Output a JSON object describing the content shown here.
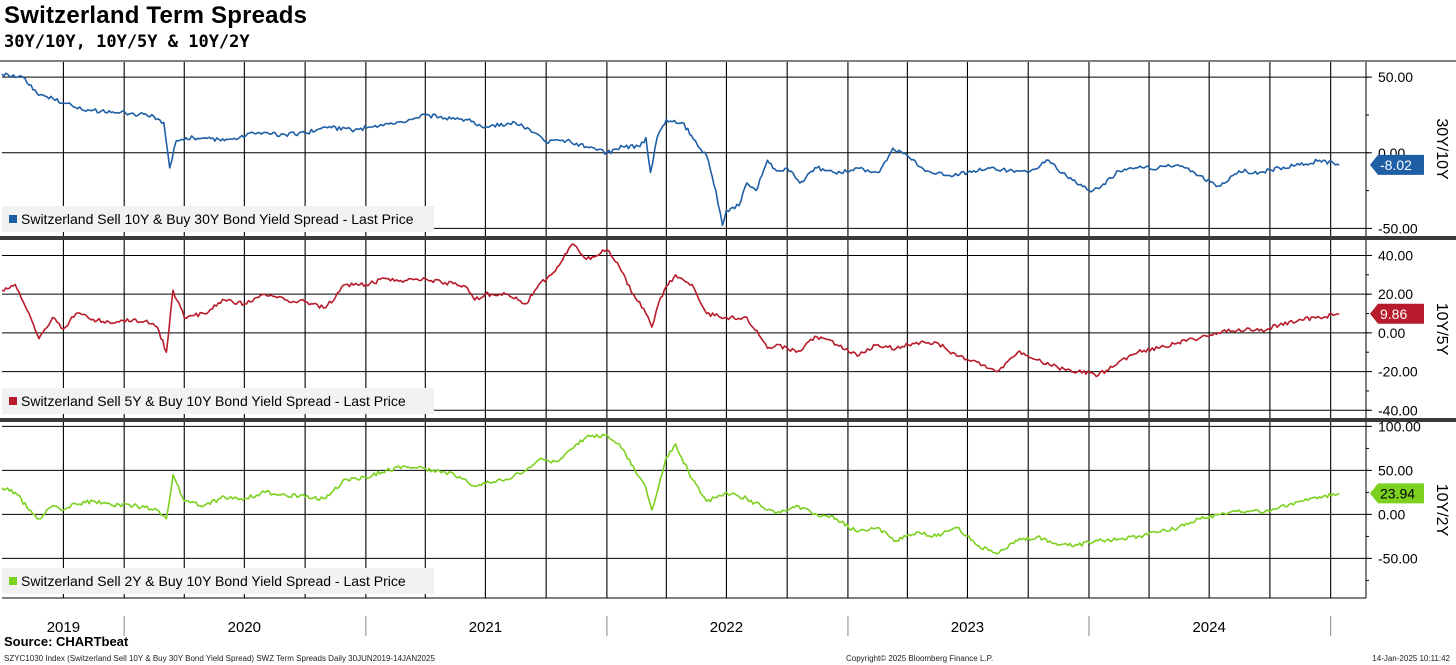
{
  "header": {
    "title": "Switzerland Term Spreads",
    "subtitle": "30Y/10Y, 10Y/5Y & 10Y/2Y"
  },
  "footer": {
    "source": "Source: CHARTbeat",
    "left": "SZYC1030 Index (Switzerland Sell 10Y & Buy 30Y Bond Yield Spread) SWZ Term Spreads  Daily 30JUN2019-14JAN2025",
    "middle": "Copyright© 2025 Bloomberg Finance L.P.",
    "right": "14-Jan-2025 10:11:42"
  },
  "chart_data": [
    {
      "type": "line",
      "axis_label": "30Y/10Y",
      "legend": "Switzerland Sell 10Y & Buy 30Y Bond Yield Spread - Last Price",
      "color": "#1f5fa6",
      "last_value": "-8.02",
      "ylim": [
        -55,
        60
      ],
      "y_ticks": [
        "50.00",
        "0.00",
        "-50.00"
      ],
      "y_tick_values": [
        50,
        0,
        -50
      ],
      "x_start": "2019-06-30",
      "x_end": "2025-01-14",
      "points": [
        [
          "2019-06-30",
          52
        ],
        [
          "2019-08-01",
          50
        ],
        [
          "2019-08-25",
          38
        ],
        [
          "2019-09-15",
          36
        ],
        [
          "2019-10-01",
          33
        ],
        [
          "2019-11-01",
          28
        ],
        [
          "2019-12-15",
          27
        ],
        [
          "2020-01-15",
          26
        ],
        [
          "2020-02-15",
          24
        ],
        [
          "2020-03-01",
          20
        ],
        [
          "2020-03-10",
          -10
        ],
        [
          "2020-03-20",
          8
        ],
        [
          "2020-04-15",
          10
        ],
        [
          "2020-06-01",
          8
        ],
        [
          "2020-07-15",
          13
        ],
        [
          "2020-09-01",
          12
        ],
        [
          "2020-10-01",
          13
        ],
        [
          "2020-11-01",
          17
        ],
        [
          "2020-12-15",
          15
        ],
        [
          "2021-01-15",
          18
        ],
        [
          "2021-03-01",
          20
        ],
        [
          "2021-04-01",
          25
        ],
        [
          "2021-05-01",
          23
        ],
        [
          "2021-06-01",
          22
        ],
        [
          "2021-07-01",
          17
        ],
        [
          "2021-08-15",
          20
        ],
        [
          "2021-09-15",
          13
        ],
        [
          "2021-10-01",
          7
        ],
        [
          "2021-11-01",
          8
        ],
        [
          "2021-12-01",
          4
        ],
        [
          "2022-01-01",
          0
        ],
        [
          "2022-01-25",
          4
        ],
        [
          "2022-02-20",
          4
        ],
        [
          "2022-03-01",
          10
        ],
        [
          "2022-03-08",
          -13
        ],
        [
          "2022-03-18",
          10
        ],
        [
          "2022-04-01",
          22
        ],
        [
          "2022-04-25",
          20
        ],
        [
          "2022-05-15",
          8
        ],
        [
          "2022-06-01",
          -2
        ],
        [
          "2022-06-15",
          -25
        ],
        [
          "2022-06-25",
          -48
        ],
        [
          "2022-07-01",
          -38
        ],
        [
          "2022-07-20",
          -35
        ],
        [
          "2022-08-01",
          -20
        ],
        [
          "2022-08-15",
          -25
        ],
        [
          "2022-09-01",
          -5
        ],
        [
          "2022-09-15",
          -12
        ],
        [
          "2022-10-01",
          -10
        ],
        [
          "2022-10-20",
          -20
        ],
        [
          "2022-11-15",
          -10
        ],
        [
          "2022-12-15",
          -14
        ],
        [
          "2023-01-15",
          -10
        ],
        [
          "2023-02-15",
          -13
        ],
        [
          "2023-03-01",
          -5
        ],
        [
          "2023-03-10",
          3
        ],
        [
          "2023-04-01",
          -2
        ],
        [
          "2023-05-01",
          -12
        ],
        [
          "2023-06-01",
          -15
        ],
        [
          "2023-07-01",
          -13
        ],
        [
          "2023-08-01",
          -10
        ],
        [
          "2023-09-01",
          -12
        ],
        [
          "2023-10-01",
          -13
        ],
        [
          "2023-11-01",
          -5
        ],
        [
          "2023-12-01",
          -17
        ],
        [
          "2024-01-01",
          -25
        ],
        [
          "2024-01-20",
          -22
        ],
        [
          "2024-02-15",
          -12
        ],
        [
          "2024-03-15",
          -10
        ],
        [
          "2024-04-15",
          -10
        ],
        [
          "2024-05-15",
          -8
        ],
        [
          "2024-06-15",
          -15
        ],
        [
          "2024-07-15",
          -22
        ],
        [
          "2024-08-15",
          -12
        ],
        [
          "2024-09-15",
          -13
        ],
        [
          "2024-10-15",
          -10
        ],
        [
          "2024-11-15",
          -8
        ],
        [
          "2024-12-15",
          -5
        ],
        [
          "2025-01-14",
          -8.02
        ]
      ]
    },
    {
      "type": "line",
      "axis_label": "10Y/5Y",
      "legend": "Switzerland Sell 5Y & Buy 10Y Bond Yield Spread - Last Price",
      "color": "#b81b2c",
      "last_value": "9.86",
      "ylim": [
        -44,
        48
      ],
      "y_ticks": [
        "40.00",
        "20.00",
        "0.00",
        "-20.00",
        "-40.00"
      ],
      "y_tick_values": [
        40,
        20,
        0,
        -20,
        -40
      ],
      "x_start": "2019-06-30",
      "x_end": "2025-01-14",
      "points": [
        [
          "2019-06-30",
          22
        ],
        [
          "2019-07-20",
          25
        ],
        [
          "2019-08-10",
          10
        ],
        [
          "2019-08-25",
          -3
        ],
        [
          "2019-09-15",
          8
        ],
        [
          "2019-10-01",
          2
        ],
        [
          "2019-10-20",
          10
        ],
        [
          "2019-11-15",
          7
        ],
        [
          "2019-12-15",
          5
        ],
        [
          "2020-01-15",
          7
        ],
        [
          "2020-02-01",
          6
        ],
        [
          "2020-02-20",
          3
        ],
        [
          "2020-03-05",
          -10
        ],
        [
          "2020-03-15",
          22
        ],
        [
          "2020-04-01",
          8
        ],
        [
          "2020-05-01",
          10
        ],
        [
          "2020-06-01",
          17
        ],
        [
          "2020-07-01",
          15
        ],
        [
          "2020-08-01",
          20
        ],
        [
          "2020-09-01",
          17
        ],
        [
          "2020-10-01",
          16
        ],
        [
          "2020-11-01",
          13
        ],
        [
          "2020-12-01",
          25
        ],
        [
          "2021-01-01",
          25
        ],
        [
          "2021-02-01",
          28
        ],
        [
          "2021-03-01",
          27
        ],
        [
          "2021-04-01",
          28
        ],
        [
          "2021-05-01",
          26
        ],
        [
          "2021-06-01",
          24
        ],
        [
          "2021-06-15",
          17
        ],
        [
          "2021-07-01",
          20
        ],
        [
          "2021-08-01",
          20
        ],
        [
          "2021-09-01",
          15
        ],
        [
          "2021-09-20",
          25
        ],
        [
          "2021-10-15",
          32
        ],
        [
          "2021-11-10",
          46
        ],
        [
          "2021-12-01",
          38
        ],
        [
          "2022-01-01",
          43
        ],
        [
          "2022-01-20",
          34
        ],
        [
          "2022-02-10",
          20
        ],
        [
          "2022-03-01",
          10
        ],
        [
          "2022-03-10",
          3
        ],
        [
          "2022-03-20",
          15
        ],
        [
          "2022-04-01",
          24
        ],
        [
          "2022-04-15",
          30
        ],
        [
          "2022-05-10",
          25
        ],
        [
          "2022-06-01",
          10
        ],
        [
          "2022-07-01",
          8
        ],
        [
          "2022-08-01",
          8
        ],
        [
          "2022-09-01",
          -8
        ],
        [
          "2022-09-15",
          -6
        ],
        [
          "2022-10-15",
          -10
        ],
        [
          "2022-11-15",
          -2
        ],
        [
          "2022-12-15",
          -6
        ],
        [
          "2023-01-15",
          -12
        ],
        [
          "2023-02-15",
          -6
        ],
        [
          "2023-03-15",
          -8
        ],
        [
          "2023-04-15",
          -5
        ],
        [
          "2023-05-15",
          -5
        ],
        [
          "2023-06-15",
          -12
        ],
        [
          "2023-07-15",
          -15
        ],
        [
          "2023-08-15",
          -20
        ],
        [
          "2023-09-15",
          -10
        ],
        [
          "2023-10-15",
          -14
        ],
        [
          "2023-11-15",
          -18
        ],
        [
          "2023-12-15",
          -20
        ],
        [
          "2024-01-15",
          -22
        ],
        [
          "2024-02-15",
          -15
        ],
        [
          "2024-03-15",
          -10
        ],
        [
          "2024-04-15",
          -8
        ],
        [
          "2024-05-15",
          -5
        ],
        [
          "2024-06-15",
          -3
        ],
        [
          "2024-07-15",
          0
        ],
        [
          "2024-08-15",
          2
        ],
        [
          "2024-09-15",
          1
        ],
        [
          "2024-10-15",
          4
        ],
        [
          "2024-11-15",
          7
        ],
        [
          "2024-12-15",
          8
        ],
        [
          "2025-01-14",
          9.86
        ]
      ]
    },
    {
      "type": "line",
      "axis_label": "10Y/2Y",
      "legend": "Switzerland Sell 2Y & Buy 10Y Bond Yield Spread - Last Price",
      "color": "#7bd11e",
      "last_value": "23.94",
      "ylim": [
        -95,
        105
      ],
      "y_ticks": [
        "100.00",
        "50.00",
        "0.00",
        "-50.00"
      ],
      "y_tick_values": [
        100,
        50,
        0,
        -50
      ],
      "x_start": "2019-06-30",
      "x_end": "2025-01-14",
      "points": [
        [
          "2019-06-30",
          30
        ],
        [
          "2019-07-20",
          25
        ],
        [
          "2019-08-10",
          5
        ],
        [
          "2019-08-25",
          -5
        ],
        [
          "2019-09-15",
          10
        ],
        [
          "2019-10-01",
          5
        ],
        [
          "2019-10-20",
          12
        ],
        [
          "2019-11-15",
          15
        ],
        [
          "2019-12-15",
          10
        ],
        [
          "2020-01-15",
          10
        ],
        [
          "2020-02-01",
          8
        ],
        [
          "2020-02-20",
          5
        ],
        [
          "2020-03-05",
          -5
        ],
        [
          "2020-03-15",
          45
        ],
        [
          "2020-04-01",
          15
        ],
        [
          "2020-05-01",
          10
        ],
        [
          "2020-06-01",
          20
        ],
        [
          "2020-07-01",
          18
        ],
        [
          "2020-08-01",
          25
        ],
        [
          "2020-09-01",
          22
        ],
        [
          "2020-10-01",
          20
        ],
        [
          "2020-11-01",
          18
        ],
        [
          "2020-12-01",
          40
        ],
        [
          "2021-01-01",
          42
        ],
        [
          "2021-02-01",
          50
        ],
        [
          "2021-03-01",
          55
        ],
        [
          "2021-04-01",
          52
        ],
        [
          "2021-05-01",
          48
        ],
        [
          "2021-06-01",
          40
        ],
        [
          "2021-06-15",
          32
        ],
        [
          "2021-07-01",
          35
        ],
        [
          "2021-08-01",
          40
        ],
        [
          "2021-09-01",
          50
        ],
        [
          "2021-09-20",
          62
        ],
        [
          "2021-10-15",
          60
        ],
        [
          "2021-11-10",
          75
        ],
        [
          "2021-12-01",
          88
        ],
        [
          "2022-01-01",
          90
        ],
        [
          "2022-01-20",
          80
        ],
        [
          "2022-02-10",
          55
        ],
        [
          "2022-03-01",
          30
        ],
        [
          "2022-03-10",
          5
        ],
        [
          "2022-03-20",
          30
        ],
        [
          "2022-04-01",
          65
        ],
        [
          "2022-04-15",
          80
        ],
        [
          "2022-05-10",
          40
        ],
        [
          "2022-06-01",
          15
        ],
        [
          "2022-07-01",
          25
        ],
        [
          "2022-08-01",
          18
        ],
        [
          "2022-09-01",
          5
        ],
        [
          "2022-09-15",
          2
        ],
        [
          "2022-10-15",
          10
        ],
        [
          "2022-11-15",
          0
        ],
        [
          "2022-12-15",
          -5
        ],
        [
          "2023-01-15",
          -20
        ],
        [
          "2023-02-15",
          -15
        ],
        [
          "2023-03-15",
          -30
        ],
        [
          "2023-04-15",
          -20
        ],
        [
          "2023-05-15",
          -25
        ],
        [
          "2023-06-15",
          -15
        ],
        [
          "2023-07-15",
          -35
        ],
        [
          "2023-08-15",
          -45
        ],
        [
          "2023-09-15",
          -30
        ],
        [
          "2023-10-15",
          -25
        ],
        [
          "2023-11-15",
          -35
        ],
        [
          "2023-12-15",
          -35
        ],
        [
          "2024-01-15",
          -30
        ],
        [
          "2024-02-15",
          -28
        ],
        [
          "2024-03-15",
          -25
        ],
        [
          "2024-04-15",
          -20
        ],
        [
          "2024-05-15",
          -15
        ],
        [
          "2024-06-15",
          -5
        ],
        [
          "2024-07-15",
          0
        ],
        [
          "2024-08-15",
          5
        ],
        [
          "2024-09-15",
          3
        ],
        [
          "2024-10-15",
          8
        ],
        [
          "2024-11-15",
          15
        ],
        [
          "2024-12-15",
          20
        ],
        [
          "2025-01-14",
          23.94
        ]
      ]
    }
  ],
  "x_axis": {
    "year_labels": [
      "2019",
      "2020",
      "2021",
      "2022",
      "2023",
      "2024"
    ],
    "year_label_dates": [
      "2019-10-01",
      "2020-07-01",
      "2021-07-01",
      "2022-07-01",
      "2023-07-01",
      "2024-07-01"
    ],
    "year_boundaries": [
      "2020-01-01",
      "2021-01-01",
      "2022-01-01",
      "2023-01-01",
      "2024-01-01",
      "2025-01-01"
    ]
  }
}
